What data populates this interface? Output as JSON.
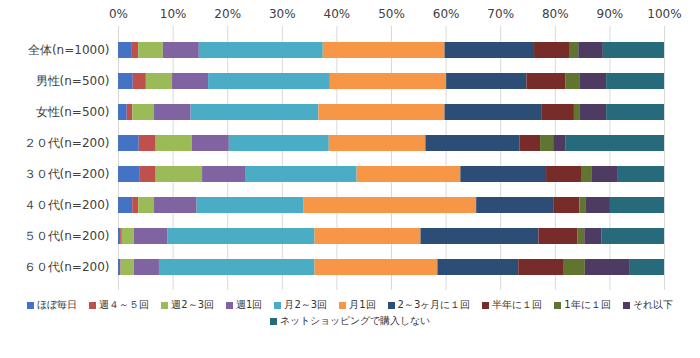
{
  "chart_data": {
    "type": "bar",
    "orientation": "horizontal",
    "stacked": true,
    "grid": true,
    "legend": "bottom",
    "categories": [
      "全体(n=1000)",
      "男性(n=500)",
      "女性(n=500)",
      "２０代(n=200)",
      "３０代(n=200)",
      "４０代(n=200)",
      "５０代(n=200)",
      "６０代(n=200)"
    ],
    "xlim": [
      0,
      100
    ],
    "xticks": [
      {
        "value": 0,
        "label": "0%"
      },
      {
        "value": 10,
        "label": "10%"
      },
      {
        "value": 20,
        "label": "20%"
      },
      {
        "value": 30,
        "label": "30%"
      },
      {
        "value": 40,
        "label": "40%"
      },
      {
        "value": 50,
        "label": "50%"
      },
      {
        "value": 60,
        "label": "60%"
      },
      {
        "value": 70,
        "label": "70%"
      },
      {
        "value": 80,
        "label": "80%"
      },
      {
        "value": 90,
        "label": "90%"
      },
      {
        "value": 100,
        "label": "100%"
      }
    ],
    "series": [
      {
        "name": "ほぼ毎日",
        "color": "#4472c4",
        "values": [
          2.4,
          2.7,
          1.6,
          3.8,
          4.0,
          2.6,
          0.4,
          0.4
        ]
      },
      {
        "name": "週４～５回",
        "color": "#c0504d",
        "values": [
          1.3,
          2.4,
          1.0,
          3.1,
          2.9,
          1.1,
          0.3,
          0.1
        ]
      },
      {
        "name": "週2～3回",
        "color": "#9bbb59",
        "values": [
          4.5,
          4.8,
          4.0,
          6.6,
          8.5,
          2.9,
          2.2,
          2.4
        ]
      },
      {
        "name": "週1回",
        "color": "#8064a2",
        "values": [
          6.6,
          6.6,
          6.7,
          6.8,
          8.0,
          7.8,
          6.1,
          4.6
        ]
      },
      {
        "name": "月2～3回",
        "color": "#4bacc6",
        "values": [
          22.7,
          22.3,
          23.4,
          18.3,
          20.3,
          19.6,
          27.0,
          28.5
        ]
      },
      {
        "name": "月1回",
        "color": "#f79646",
        "values": [
          22.3,
          21.3,
          23.1,
          17.7,
          19.0,
          31.6,
          19.4,
          22.5
        ]
      },
      {
        "name": "2～3ヶ月に１回",
        "color": "#2c4d75",
        "values": [
          16.4,
          14.7,
          17.7,
          17.2,
          15.7,
          14.1,
          21.6,
          14.8
        ]
      },
      {
        "name": "半年に１回",
        "color": "#772c2a",
        "values": [
          6.4,
          7.1,
          6.0,
          3.8,
          6.4,
          4.8,
          7.1,
          8.2
        ]
      },
      {
        "name": "1年に１回",
        "color": "#5f7530",
        "values": [
          1.7,
          2.7,
          1.1,
          2.4,
          2.0,
          1.2,
          1.3,
          4.0
        ]
      },
      {
        "name": "それ以下",
        "color": "#4d3b62",
        "values": [
          4.5,
          4.8,
          4.8,
          2.2,
          4.6,
          4.4,
          3.1,
          8.1
        ]
      },
      {
        "name": "ネットショッピングで購入しない",
        "color": "#276a7c",
        "values": [
          11.2,
          10.6,
          10.6,
          18.1,
          8.6,
          9.9,
          11.5,
          6.4
        ]
      }
    ]
  }
}
